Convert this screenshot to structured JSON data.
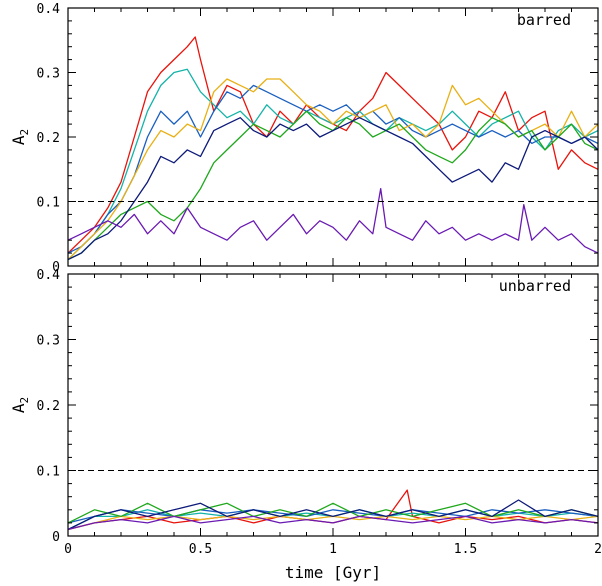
{
  "chart_data": [
    {
      "type": "line",
      "panel_label": "barred",
      "ylabel": "A",
      "ylabel_sub": "2",
      "xlabel": "",
      "xlim": [
        0,
        2
      ],
      "ylim": [
        0,
        0.4
      ],
      "xticks": [
        0,
        0.5,
        1,
        1.5,
        2
      ],
      "yticks": [
        0,
        0.1,
        0.2,
        0.3,
        0.4
      ],
      "xtick_labels_shown": false,
      "reference_line": 0.1,
      "series": [
        {
          "color": "#e8140c",
          "x": [
            0,
            0.05,
            0.1,
            0.15,
            0.2,
            0.25,
            0.3,
            0.35,
            0.4,
            0.45,
            0.48,
            0.5,
            0.55,
            0.6,
            0.65,
            0.7,
            0.75,
            0.8,
            0.85,
            0.9,
            0.95,
            1.0,
            1.05,
            1.1,
            1.15,
            1.2,
            1.25,
            1.3,
            1.35,
            1.4,
            1.45,
            1.5,
            1.55,
            1.6,
            1.65,
            1.7,
            1.75,
            1.8,
            1.85,
            1.9,
            1.95,
            2.0
          ],
          "y": [
            0.02,
            0.04,
            0.06,
            0.09,
            0.13,
            0.2,
            0.27,
            0.3,
            0.32,
            0.34,
            0.355,
            0.32,
            0.24,
            0.28,
            0.27,
            0.22,
            0.2,
            0.24,
            0.22,
            0.25,
            0.23,
            0.22,
            0.21,
            0.24,
            0.26,
            0.3,
            0.28,
            0.26,
            0.24,
            0.22,
            0.18,
            0.2,
            0.24,
            0.23,
            0.27,
            0.21,
            0.23,
            0.24,
            0.15,
            0.18,
            0.16,
            0.15
          ]
        },
        {
          "color": "#14b3a8",
          "x": [
            0,
            0.05,
            0.1,
            0.15,
            0.2,
            0.25,
            0.3,
            0.35,
            0.4,
            0.45,
            0.5,
            0.55,
            0.6,
            0.65,
            0.7,
            0.75,
            0.8,
            0.85,
            0.9,
            0.95,
            1.0,
            1.05,
            1.1,
            1.15,
            1.2,
            1.25,
            1.3,
            1.35,
            1.4,
            1.45,
            1.5,
            1.55,
            1.6,
            1.65,
            1.7,
            1.75,
            1.8,
            1.85,
            1.9,
            1.95,
            2.0
          ],
          "y": [
            0.01,
            0.03,
            0.05,
            0.08,
            0.12,
            0.18,
            0.24,
            0.28,
            0.3,
            0.305,
            0.27,
            0.25,
            0.23,
            0.24,
            0.22,
            0.25,
            0.23,
            0.22,
            0.24,
            0.23,
            0.22,
            0.23,
            0.24,
            0.22,
            0.21,
            0.23,
            0.22,
            0.21,
            0.22,
            0.24,
            0.22,
            0.2,
            0.22,
            0.23,
            0.24,
            0.2,
            0.18,
            0.21,
            0.22,
            0.2,
            0.21
          ]
        },
        {
          "color": "#1a5fc0",
          "x": [
            0,
            0.05,
            0.1,
            0.15,
            0.2,
            0.25,
            0.3,
            0.35,
            0.4,
            0.45,
            0.5,
            0.55,
            0.6,
            0.65,
            0.7,
            0.75,
            0.8,
            0.85,
            0.9,
            0.95,
            1.0,
            1.05,
            1.1,
            1.15,
            1.2,
            1.25,
            1.3,
            1.35,
            1.4,
            1.45,
            1.5,
            1.55,
            1.6,
            1.65,
            1.7,
            1.75,
            1.8,
            1.85,
            1.9,
            1.95,
            2.0
          ],
          "y": [
            0.02,
            0.03,
            0.05,
            0.08,
            0.1,
            0.14,
            0.2,
            0.24,
            0.22,
            0.24,
            0.2,
            0.24,
            0.27,
            0.26,
            0.28,
            0.27,
            0.26,
            0.25,
            0.24,
            0.25,
            0.24,
            0.25,
            0.23,
            0.24,
            0.22,
            0.23,
            0.21,
            0.2,
            0.21,
            0.22,
            0.21,
            0.2,
            0.21,
            0.2,
            0.21,
            0.19,
            0.2,
            0.2,
            0.19,
            0.2,
            0.19
          ]
        },
        {
          "color": "#e8b014",
          "x": [
            0,
            0.05,
            0.1,
            0.15,
            0.2,
            0.25,
            0.3,
            0.35,
            0.4,
            0.45,
            0.5,
            0.55,
            0.6,
            0.65,
            0.7,
            0.75,
            0.8,
            0.85,
            0.9,
            0.95,
            1.0,
            1.05,
            1.1,
            1.15,
            1.2,
            1.25,
            1.3,
            1.35,
            1.4,
            1.45,
            1.5,
            1.55,
            1.6,
            1.65,
            1.7,
            1.75,
            1.8,
            1.85,
            1.9,
            1.95,
            2.0
          ],
          "y": [
            0.01,
            0.03,
            0.05,
            0.07,
            0.1,
            0.14,
            0.18,
            0.21,
            0.2,
            0.22,
            0.21,
            0.27,
            0.29,
            0.28,
            0.27,
            0.29,
            0.29,
            0.27,
            0.25,
            0.24,
            0.22,
            0.24,
            0.23,
            0.24,
            0.25,
            0.21,
            0.22,
            0.2,
            0.22,
            0.28,
            0.25,
            0.26,
            0.24,
            0.22,
            0.2,
            0.21,
            0.22,
            0.2,
            0.24,
            0.2,
            0.22
          ]
        },
        {
          "color": "#1fa81c",
          "x": [
            0,
            0.05,
            0.1,
            0.15,
            0.2,
            0.25,
            0.3,
            0.35,
            0.4,
            0.45,
            0.5,
            0.55,
            0.6,
            0.65,
            0.7,
            0.75,
            0.8,
            0.85,
            0.9,
            0.95,
            1.0,
            1.05,
            1.1,
            1.15,
            1.2,
            1.25,
            1.3,
            1.35,
            1.4,
            1.45,
            1.5,
            1.55,
            1.6,
            1.65,
            1.7,
            1.75,
            1.8,
            1.85,
            1.9,
            1.95,
            2.0
          ],
          "y": [
            0.01,
            0.02,
            0.04,
            0.06,
            0.08,
            0.09,
            0.1,
            0.08,
            0.07,
            0.09,
            0.12,
            0.16,
            0.18,
            0.2,
            0.22,
            0.21,
            0.2,
            0.22,
            0.24,
            0.22,
            0.21,
            0.23,
            0.22,
            0.2,
            0.21,
            0.22,
            0.2,
            0.18,
            0.17,
            0.16,
            0.18,
            0.21,
            0.23,
            0.22,
            0.2,
            0.21,
            0.18,
            0.2,
            0.22,
            0.19,
            0.18
          ]
        },
        {
          "color": "#0d1a7a",
          "x": [
            0,
            0.05,
            0.1,
            0.15,
            0.2,
            0.25,
            0.3,
            0.35,
            0.4,
            0.45,
            0.5,
            0.55,
            0.6,
            0.65,
            0.7,
            0.75,
            0.8,
            0.85,
            0.9,
            0.95,
            1.0,
            1.05,
            1.1,
            1.15,
            1.2,
            1.25,
            1.3,
            1.35,
            1.4,
            1.45,
            1.5,
            1.55,
            1.6,
            1.65,
            1.7,
            1.75,
            1.8,
            1.85,
            1.9,
            1.95,
            2.0
          ],
          "y": [
            0.01,
            0.02,
            0.04,
            0.05,
            0.07,
            0.1,
            0.13,
            0.17,
            0.16,
            0.18,
            0.17,
            0.21,
            0.22,
            0.23,
            0.21,
            0.2,
            0.22,
            0.21,
            0.22,
            0.2,
            0.21,
            0.22,
            0.23,
            0.22,
            0.21,
            0.2,
            0.19,
            0.17,
            0.15,
            0.13,
            0.14,
            0.15,
            0.13,
            0.16,
            0.15,
            0.2,
            0.21,
            0.2,
            0.19,
            0.2,
            0.18
          ]
        },
        {
          "color": "#6a1ab3",
          "x": [
            0,
            0.05,
            0.1,
            0.15,
            0.2,
            0.25,
            0.3,
            0.35,
            0.4,
            0.45,
            0.5,
            0.55,
            0.6,
            0.65,
            0.7,
            0.75,
            0.8,
            0.85,
            0.9,
            0.95,
            1.0,
            1.05,
            1.1,
            1.15,
            1.18,
            1.2,
            1.25,
            1.3,
            1.35,
            1.4,
            1.45,
            1.5,
            1.55,
            1.6,
            1.65,
            1.7,
            1.72,
            1.75,
            1.8,
            1.85,
            1.9,
            1.95,
            2.0
          ],
          "y": [
            0.04,
            0.05,
            0.06,
            0.07,
            0.06,
            0.08,
            0.05,
            0.07,
            0.05,
            0.09,
            0.06,
            0.05,
            0.04,
            0.06,
            0.07,
            0.04,
            0.06,
            0.08,
            0.05,
            0.07,
            0.06,
            0.04,
            0.07,
            0.05,
            0.12,
            0.06,
            0.05,
            0.04,
            0.07,
            0.05,
            0.06,
            0.04,
            0.05,
            0.04,
            0.05,
            0.04,
            0.095,
            0.04,
            0.06,
            0.04,
            0.05,
            0.03,
            0.02
          ]
        }
      ]
    },
    {
      "type": "line",
      "panel_label": "unbarred",
      "ylabel": "A",
      "ylabel_sub": "2",
      "xlabel": "time [Gyr]",
      "xlim": [
        0,
        2
      ],
      "ylim": [
        0,
        0.4
      ],
      "xticks": [
        0,
        0.5,
        1,
        1.5,
        2
      ],
      "yticks": [
        0,
        0.1,
        0.2,
        0.3,
        0.4
      ],
      "xtick_labels_shown": true,
      "reference_line": 0.1,
      "series": [
        {
          "color": "#e8140c",
          "x": [
            0,
            0.1,
            0.2,
            0.3,
            0.4,
            0.5,
            0.6,
            0.7,
            0.8,
            0.9,
            1.0,
            1.1,
            1.2,
            1.28,
            1.3,
            1.4,
            1.5,
            1.6,
            1.7,
            1.8,
            1.9,
            2.0
          ],
          "y": [
            0.01,
            0.02,
            0.025,
            0.03,
            0.02,
            0.025,
            0.03,
            0.02,
            0.03,
            0.025,
            0.02,
            0.03,
            0.025,
            0.07,
            0.03,
            0.02,
            0.03,
            0.025,
            0.03,
            0.02,
            0.025,
            0.02
          ]
        },
        {
          "color": "#14b3a8",
          "x": [
            0,
            0.1,
            0.2,
            0.3,
            0.4,
            0.5,
            0.6,
            0.7,
            0.8,
            0.9,
            1.0,
            1.1,
            1.2,
            1.3,
            1.4,
            1.5,
            1.6,
            1.7,
            1.8,
            1.9,
            2.0
          ],
          "y": [
            0.01,
            0.03,
            0.03,
            0.04,
            0.03,
            0.035,
            0.03,
            0.04,
            0.03,
            0.035,
            0.03,
            0.04,
            0.03,
            0.035,
            0.03,
            0.04,
            0.03,
            0.035,
            0.03,
            0.035,
            0.03
          ]
        },
        {
          "color": "#1a5fc0",
          "x": [
            0,
            0.1,
            0.2,
            0.3,
            0.4,
            0.5,
            0.6,
            0.7,
            0.8,
            0.9,
            1.0,
            1.1,
            1.2,
            1.3,
            1.4,
            1.5,
            1.6,
            1.7,
            1.8,
            1.9,
            2.0
          ],
          "y": [
            0.02,
            0.03,
            0.04,
            0.035,
            0.03,
            0.04,
            0.035,
            0.04,
            0.035,
            0.03,
            0.04,
            0.035,
            0.03,
            0.04,
            0.035,
            0.03,
            0.04,
            0.035,
            0.04,
            0.035,
            0.03
          ]
        },
        {
          "color": "#e8b014",
          "x": [
            0,
            0.1,
            0.2,
            0.3,
            0.4,
            0.5,
            0.6,
            0.7,
            0.8,
            0.9,
            1.0,
            1.1,
            1.2,
            1.3,
            1.4,
            1.5,
            1.6,
            1.7,
            1.8,
            1.9,
            2.0
          ],
          "y": [
            0.01,
            0.02,
            0.03,
            0.025,
            0.03,
            0.025,
            0.03,
            0.025,
            0.03,
            0.025,
            0.03,
            0.025,
            0.03,
            0.025,
            0.03,
            0.025,
            0.03,
            0.025,
            0.03,
            0.025,
            0.03
          ]
        },
        {
          "color": "#1fa81c",
          "x": [
            0,
            0.1,
            0.2,
            0.3,
            0.4,
            0.5,
            0.6,
            0.7,
            0.8,
            0.9,
            1.0,
            1.1,
            1.2,
            1.3,
            1.4,
            1.5,
            1.6,
            1.7,
            1.8,
            1.9,
            2.0
          ],
          "y": [
            0.02,
            0.04,
            0.03,
            0.05,
            0.03,
            0.04,
            0.05,
            0.03,
            0.04,
            0.03,
            0.05,
            0.03,
            0.04,
            0.03,
            0.04,
            0.05,
            0.03,
            0.04,
            0.03,
            0.04,
            0.03
          ]
        },
        {
          "color": "#0d1a7a",
          "x": [
            0,
            0.1,
            0.2,
            0.3,
            0.4,
            0.5,
            0.6,
            0.7,
            0.8,
            0.9,
            1.0,
            1.1,
            1.2,
            1.3,
            1.4,
            1.5,
            1.6,
            1.7,
            1.8,
            1.9,
            2.0
          ],
          "y": [
            0.01,
            0.03,
            0.04,
            0.03,
            0.04,
            0.05,
            0.03,
            0.04,
            0.03,
            0.04,
            0.03,
            0.04,
            0.03,
            0.04,
            0.03,
            0.04,
            0.03,
            0.055,
            0.03,
            0.04,
            0.03
          ]
        },
        {
          "color": "#6a1ab3",
          "x": [
            0,
            0.1,
            0.2,
            0.3,
            0.4,
            0.5,
            0.6,
            0.7,
            0.8,
            0.9,
            1.0,
            1.1,
            1.2,
            1.3,
            1.4,
            1.5,
            1.6,
            1.7,
            1.8,
            1.9,
            2.0
          ],
          "y": [
            0.01,
            0.02,
            0.025,
            0.02,
            0.03,
            0.02,
            0.025,
            0.03,
            0.02,
            0.025,
            0.02,
            0.03,
            0.025,
            0.02,
            0.025,
            0.03,
            0.02,
            0.025,
            0.02,
            0.025,
            0.02
          ]
        }
      ]
    }
  ]
}
